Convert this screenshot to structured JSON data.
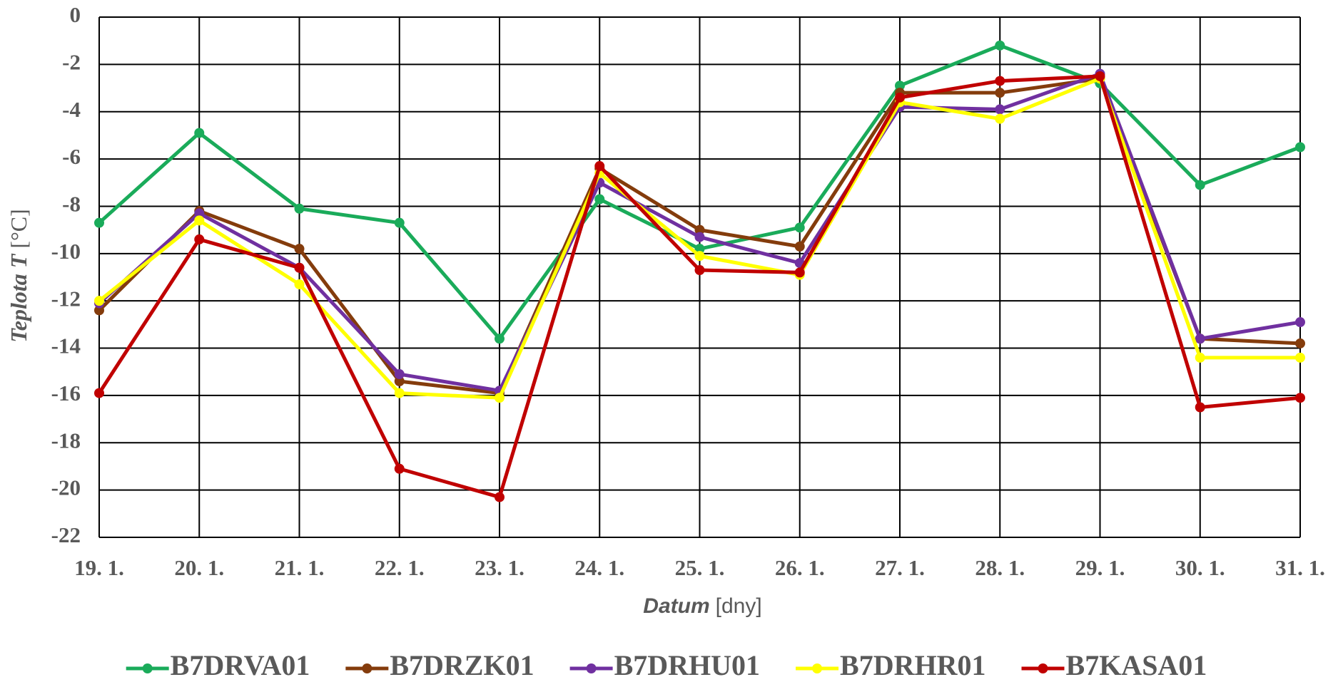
{
  "chart_data": {
    "type": "line",
    "xlabel": "Datum",
    "xlabel_unit": "[dny]",
    "ylabel": "Teplota T",
    "ylabel_unit": "[°C]",
    "categories": [
      "19. 1.",
      "20. 1.",
      "21. 1.",
      "22. 1.",
      "23. 1.",
      "24. 1.",
      "25. 1.",
      "26. 1.",
      "27. 1.",
      "28. 1.",
      "29. 1.",
      "30. 1.",
      "31. 1."
    ],
    "series": [
      {
        "name": "B7DRVA01",
        "color": "#1aab5a",
        "values": [
          -8.7,
          -4.9,
          -8.1,
          -8.7,
          -13.6,
          -7.7,
          -9.8,
          -8.9,
          -2.9,
          -1.2,
          -2.8,
          -7.1,
          -5.5
        ]
      },
      {
        "name": "B7DRZK01",
        "color": "#843c0c",
        "values": [
          -12.4,
          -8.2,
          -9.8,
          -15.4,
          -15.9,
          -6.4,
          -9.0,
          -9.7,
          -3.2,
          -3.2,
          -2.6,
          -13.6,
          -13.8
        ]
      },
      {
        "name": "B7DRHU01",
        "color": "#7030a0",
        "values": [
          -12.1,
          -8.3,
          -10.6,
          -15.1,
          -15.8,
          -7.0,
          -9.3,
          -10.4,
          -3.8,
          -3.9,
          -2.4,
          -13.6,
          -12.9
        ]
      },
      {
        "name": "B7DRHR01",
        "color": "#ffff00",
        "values": [
          -12.0,
          -8.6,
          -11.3,
          -15.9,
          -16.1,
          -6.6,
          -10.1,
          -10.9,
          -3.6,
          -4.3,
          -2.6,
          -14.4,
          -14.4
        ]
      },
      {
        "name": "B7KASA01",
        "color": "#c00000",
        "values": [
          -15.9,
          -9.4,
          -10.6,
          -19.1,
          -20.3,
          -6.3,
          -10.7,
          -10.8,
          -3.4,
          -2.7,
          -2.5,
          -16.5,
          -16.1
        ]
      }
    ],
    "ylim": [
      -22,
      0
    ],
    "yticks": [
      0,
      -2,
      -4,
      -6,
      -8,
      -10,
      -12,
      -14,
      -16,
      -18,
      -20,
      -22
    ],
    "grid": true,
    "legend": "bottom"
  }
}
